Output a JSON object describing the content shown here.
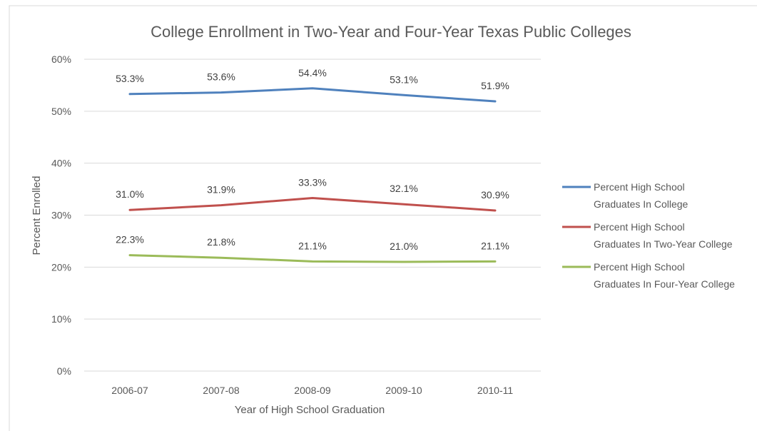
{
  "chart_data": {
    "type": "line",
    "title": "College Enrollment in Two-Year and Four-Year Texas Public Colleges",
    "xlabel": "Year of High School Graduation",
    "ylabel": "Percent Enrolled",
    "categories": [
      "2006-07",
      "2007-08",
      "2008-09",
      "2009-10",
      "2010-11"
    ],
    "ylim": [
      0,
      60
    ],
    "yticks": [
      0,
      10,
      20,
      30,
      40,
      50,
      60
    ],
    "ytick_labels": [
      "0%",
      "10%",
      "20%",
      "30%",
      "40%",
      "50%",
      "60%"
    ],
    "grid": true,
    "legend_position": "right",
    "series": [
      {
        "name_lines": [
          "Percent High School",
          "Graduates In College"
        ],
        "color": "#4f81bd",
        "values": [
          53.3,
          53.6,
          54.4,
          53.1,
          51.9
        ],
        "labels": [
          "53.3%",
          "53.6%",
          "54.4%",
          "53.1%",
          "51.9%"
        ]
      },
      {
        "name_lines": [
          "Percent High School",
          "Graduates In Two-Year College"
        ],
        "color": "#c0504d",
        "values": [
          31.0,
          31.9,
          33.3,
          32.1,
          30.9
        ],
        "labels": [
          "31.0%",
          "31.9%",
          "33.3%",
          "32.1%",
          "30.9%"
        ]
      },
      {
        "name_lines": [
          "Percent High School",
          "Graduates In Four-Year College"
        ],
        "color": "#9bbb59",
        "values": [
          22.3,
          21.8,
          21.1,
          21.0,
          21.1
        ],
        "labels": [
          "22.3%",
          "21.8%",
          "21.1%",
          "21.0%",
          "21.1%"
        ]
      }
    ]
  }
}
